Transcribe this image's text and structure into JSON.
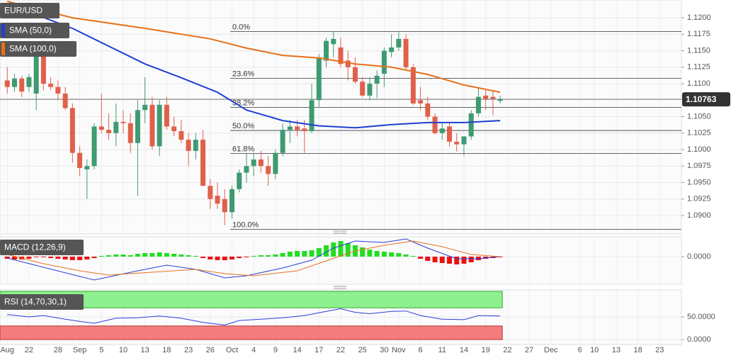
{
  "chart_data": [
    {
      "type": "candlestick",
      "title": "EUR/USD",
      "up_color": "#3f9a72",
      "down_color": "#e0604a",
      "candles": {
        "open": [
          1.1105,
          1.1095,
          1.1108,
          1.1095,
          1.1085,
          1.115,
          1.11,
          1.1095,
          1.1085,
          1.1063,
          1.0995,
          1.097,
          1.0975,
          1.1035,
          1.103,
          1.1025,
          1.1042,
          1.104,
          1.101,
          1.106,
          1.1068,
          1.1005,
          1.1068,
          1.1035,
          1.1028,
          1.1015,
          1.0998,
          1.1015,
          1.0945,
          1.093,
          1.0925,
          1.0905,
          1.094,
          1.0965,
          1.0975,
          1.0985,
          1.0975,
          1.0963,
          1.0995,
          1.103,
          1.1035,
          1.1032,
          1.1028,
          1.1075,
          1.1135,
          1.116,
          1.1155,
          1.1135,
          1.1125,
          1.1103,
          1.1082,
          1.11,
          1.1115,
          1.1148,
          1.1155,
          1.1168,
          1.1125,
          1.1075,
          1.107,
          1.105,
          1.1025,
          1.1035,
          1.1012,
          1.1008,
          1.102,
          1.1055,
          1.1082,
          1.108,
          1.1074
        ],
        "high": [
          1.1125,
          1.1115,
          1.1112,
          1.1115,
          1.116,
          1.1165,
          1.111,
          1.1105,
          1.1095,
          1.107,
          1.1005,
          1.0985,
          1.104,
          1.1085,
          1.1055,
          1.107,
          1.106,
          1.1055,
          1.1075,
          1.111,
          1.108,
          1.1075,
          1.108,
          1.105,
          1.1045,
          1.1025,
          1.1025,
          1.103,
          1.0955,
          1.095,
          1.094,
          1.0945,
          1.097,
          1.0995,
          1.0995,
          1.0998,
          1.099,
          1.1,
          1.104,
          1.1045,
          1.1045,
          1.1045,
          1.11,
          1.1145,
          1.117,
          1.118,
          1.117,
          1.115,
          1.114,
          1.111,
          1.111,
          1.112,
          1.1155,
          1.1175,
          1.1178,
          1.1175,
          1.113,
          1.1095,
          1.108,
          1.1055,
          1.104,
          1.104,
          1.1025,
          1.102,
          1.106,
          1.1095,
          1.109,
          1.1088,
          1.1082
        ],
        "low": [
          1.1085,
          1.1088,
          1.108,
          1.1088,
          1.106,
          1.109,
          1.109,
          1.1075,
          1.106,
          1.098,
          1.096,
          1.0925,
          1.097,
          1.1025,
          1.1015,
          1.1005,
          1.1025,
          1.0995,
          1.093,
          1.104,
          1.1,
          1.099,
          1.103,
          1.102,
          1.101,
          1.0975,
          1.0985,
          1.0945,
          1.091,
          1.091,
          1.0885,
          1.0895,
          1.0935,
          1.095,
          1.096,
          1.0965,
          1.0945,
          1.0955,
          1.099,
          1.101,
          1.102,
          1.0995,
          1.1025,
          1.1065,
          1.1125,
          1.114,
          1.1125,
          1.1105,
          1.11,
          1.108,
          1.1075,
          1.1078,
          1.1095,
          1.114,
          1.115,
          1.112,
          1.1068,
          1.106,
          1.1045,
          1.1023,
          1.1015,
          1.1005,
          1.0997,
          1.099,
          1.1015,
          1.105,
          1.106,
          1.1052,
          1.107
        ],
        "close": [
          1.1095,
          1.1108,
          1.1088,
          1.111,
          1.115,
          1.11,
          1.1095,
          1.1085,
          1.1063,
          1.0995,
          1.0972,
          1.0975,
          1.1035,
          1.103,
          1.1025,
          1.1042,
          1.104,
          1.101,
          1.106,
          1.1068,
          1.1005,
          1.1068,
          1.1035,
          1.1028,
          1.1015,
          1.0998,
          1.1015,
          1.0945,
          1.0925,
          1.0918,
          1.0905,
          1.094,
          1.0965,
          1.0975,
          1.0985,
          1.0975,
          1.0963,
          1.0995,
          1.103,
          1.1035,
          1.103,
          1.1028,
          1.1075,
          1.114,
          1.1165,
          1.1168,
          1.113,
          1.1125,
          1.1103,
          1.1082,
          1.11,
          1.1112,
          1.115,
          1.1155,
          1.1168,
          1.1125,
          1.107,
          1.107,
          1.105,
          1.1025,
          1.1032,
          1.1012,
          1.1008,
          1.102,
          1.1055,
          1.108,
          1.1077,
          1.1077,
          1.1076
        ]
      },
      "series": [
        {
          "name": "SMA (50,0)",
          "color": "#1f3fd1",
          "x": [
            0,
            9,
            14,
            19,
            24,
            29,
            33,
            38,
            43,
            48,
            53,
            58,
            63,
            68
          ],
          "values": [
            1.1221,
            1.1184,
            1.1157,
            1.113,
            1.1109,
            1.1087,
            1.106,
            1.1044,
            1.1036,
            1.1033,
            1.1038,
            1.1041,
            1.1041,
            1.1044
          ]
        },
        {
          "name": "SMA (100,0)",
          "color": "#e8701a",
          "x": [
            0,
            9,
            19,
            28,
            33,
            38,
            43,
            48,
            53,
            58,
            63,
            68
          ],
          "values": [
            1.1225,
            1.12,
            1.1184,
            1.1168,
            1.1154,
            1.1143,
            1.1139,
            1.113,
            1.1125,
            1.1114,
            1.1098,
            1.1087
          ]
        }
      ],
      "fib_levels": [
        {
          "label": "0.0%",
          "value": 1.1179
        },
        {
          "label": "23.6%",
          "value": 1.1108
        },
        {
          "label": "38.2%",
          "value": 1.1064
        },
        {
          "label": "50.0%",
          "value": 1.1029
        },
        {
          "label": "61.8%",
          "value": 1.0994
        },
        {
          "label": "100.0%",
          "value": 1.0879
        }
      ],
      "last_price": 1.10763,
      "ylim": [
        1.0872,
        1.1227
      ],
      "yticks": [
        {
          "value": 1.09,
          "label": "1.0900"
        },
        {
          "value": 1.0925,
          "label": "1.0925"
        },
        {
          "value": 1.095,
          "label": "1.0950"
        },
        {
          "value": 1.0975,
          "label": "1.0975"
        },
        {
          "value": 1.1,
          "label": "1.1000"
        },
        {
          "value": 1.1025,
          "label": "1.1025"
        },
        {
          "value": 1.105,
          "label": "1.1050"
        },
        {
          "value": 1.11,
          "label": "1.1100"
        },
        {
          "value": 1.1125,
          "label": "1.1125"
        },
        {
          "value": 1.115,
          "label": "1.1150"
        },
        {
          "value": 1.1175,
          "label": "1.1175"
        },
        {
          "value": 1.12,
          "label": "1.1200"
        }
      ]
    },
    {
      "type": "macd",
      "title": "MACD (12,26,9)",
      "up_color": "#22dd22",
      "down_color": "#ee1111",
      "values": [
        -0.0003,
        -0.0004,
        -0.0004,
        -0.0003,
        -0.0001,
        -0.0001,
        -0.0002,
        -0.0003,
        -0.0004,
        -0.0005,
        -0.0005,
        -0.0004,
        -0.0002,
        0.0001,
        0.0002,
        0.0003,
        0.0003,
        0.0002,
        0.0004,
        0.0005,
        0.0005,
        0.0006,
        0.0005,
        0.0004,
        0.0003,
        0.0002,
        0.0001,
        -0.0002,
        -0.0004,
        -0.0005,
        -0.0005,
        -0.0004,
        -0.0002,
        -0.0001,
        0.0001,
        0.0002,
        0.0002,
        0.0003,
        0.0005,
        0.0007,
        0.0008,
        0.0008,
        0.0009,
        0.0012,
        0.0016,
        0.002,
        0.0022,
        0.0019,
        0.0016,
        0.0013,
        0.001,
        0.0008,
        0.0007,
        0.0006,
        0.0005,
        0.0003,
        0.0001,
        -0.0003,
        -0.0006,
        -0.0008,
        -0.0009,
        -0.001,
        -0.0011,
        -0.001,
        -0.0008,
        -0.0005,
        -0.0003,
        -0.0002,
        -0.0001
      ],
      "series": [
        {
          "color": "#2b3fd8",
          "x": [
            0,
            5,
            10,
            12,
            18,
            22,
            26,
            30,
            33,
            38,
            42,
            45,
            48,
            52,
            55,
            58,
            62,
            65,
            68
          ],
          "values": [
            -0.0002,
            -0.0015,
            -0.0028,
            -0.0033,
            -0.002,
            -0.0012,
            -0.0018,
            -0.003,
            -0.0027,
            -0.0016,
            -0.0005,
            0.0012,
            0.0022,
            0.002,
            0.0025,
            0.0012,
            -0.0003,
            -0.0003,
            0
          ]
        },
        {
          "color": "#e8701a",
          "x": [
            0,
            5,
            10,
            14,
            20,
            26,
            30,
            34,
            40,
            44,
            48,
            52,
            56,
            60,
            64,
            68
          ],
          "values": [
            0.0003,
            -0.001,
            -0.002,
            -0.0026,
            -0.0022,
            -0.0018,
            -0.0024,
            -0.0027,
            -0.002,
            -0.0006,
            0.0008,
            0.0016,
            0.0022,
            0.0014,
            0.0003,
            0
          ]
        }
      ],
      "ylim": [
        -0.0039,
        0.0028
      ],
      "yticks": [
        {
          "value": 0,
          "label": "0.0000"
        }
      ]
    },
    {
      "type": "line",
      "title": "RSI (14,70,30,1)",
      "color": "#2b3fd8",
      "overbought": 70,
      "oversold": 30,
      "overbought_color": "#8ef08e",
      "oversold_color": "#f47c7c",
      "x": [
        0,
        3,
        5,
        8,
        10,
        12,
        15,
        18,
        21,
        24,
        27,
        30,
        32,
        35,
        38,
        41,
        44,
        46,
        48,
        50,
        53,
        55,
        57,
        60,
        63,
        65,
        68
      ],
      "values": [
        55,
        50,
        53,
        45,
        40,
        36,
        47,
        48,
        52,
        47,
        38,
        32,
        42,
        45,
        48,
        53,
        62,
        68,
        60,
        57,
        62,
        63,
        53,
        45,
        44,
        53,
        52
      ],
      "ylim": [
        -10.9,
        109.4
      ],
      "yticks": [
        {
          "value": 0,
          "label": "0.0000"
        },
        {
          "value": 50,
          "label": "50.0000"
        }
      ],
      "xlim": [
        -1,
        93
      ],
      "xticks": [
        {
          "value": 0,
          "label": "Aug"
        },
        {
          "value": 3,
          "label": "22"
        },
        {
          "value": 7,
          "label": "28"
        },
        {
          "value": 10,
          "label": "Sep"
        },
        {
          "value": 13,
          "label": "5"
        },
        {
          "value": 16,
          "label": "10"
        },
        {
          "value": 19,
          "label": "13"
        },
        {
          "value": 22,
          "label": "18"
        },
        {
          "value": 25,
          "label": "23"
        },
        {
          "value": 28,
          "label": "26"
        },
        {
          "value": 31,
          "label": "Oct"
        },
        {
          "value": 34,
          "label": "4"
        },
        {
          "value": 37,
          "label": "9"
        },
        {
          "value": 40,
          "label": "14"
        },
        {
          "value": 43,
          "label": "17"
        },
        {
          "value": 46,
          "label": "22"
        },
        {
          "value": 49,
          "label": "25"
        },
        {
          "value": 52,
          "label": "30"
        },
        {
          "value": 54,
          "label": "Nov"
        },
        {
          "value": 57,
          "label": "6"
        },
        {
          "value": 60,
          "label": "11"
        },
        {
          "value": 63,
          "label": "14"
        },
        {
          "value": 66,
          "label": "19"
        },
        {
          "value": 69,
          "label": "22"
        },
        {
          "value": 72,
          "label": "27"
        },
        {
          "value": 75,
          "label": "Dec"
        },
        {
          "value": 79,
          "label": "6"
        },
        {
          "value": 81,
          "label": "10"
        },
        {
          "value": 84,
          "label": "13"
        },
        {
          "value": 87,
          "label": "18"
        },
        {
          "value": 90,
          "label": "23"
        }
      ]
    }
  ]
}
